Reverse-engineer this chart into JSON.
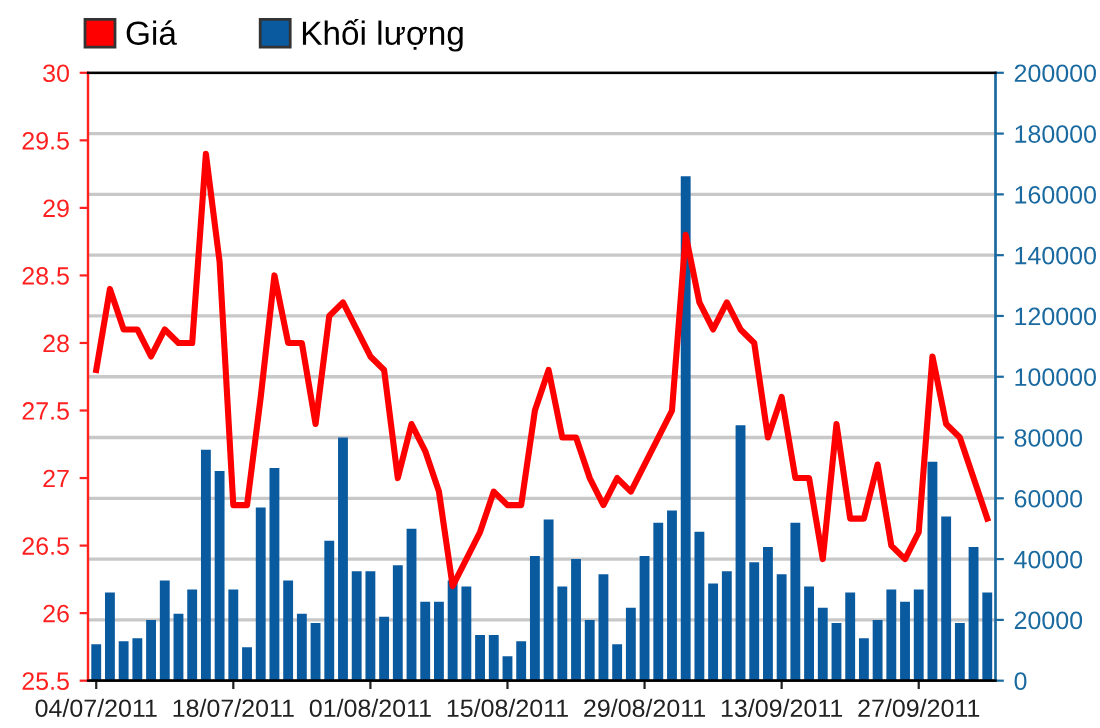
{
  "chart_data": {
    "type": "line",
    "categories": [
      "04/07/2011",
      null,
      null,
      null,
      null,
      null,
      null,
      null,
      null,
      null,
      "18/07/2011",
      null,
      null,
      null,
      null,
      null,
      null,
      null,
      null,
      null,
      "01/08/2011",
      null,
      null,
      null,
      null,
      null,
      null,
      null,
      null,
      null,
      "15/08/2011",
      null,
      null,
      null,
      null,
      null,
      null,
      null,
      null,
      null,
      "29/08/2011",
      null,
      null,
      null,
      null,
      null,
      null,
      null,
      null,
      null,
      "13/09/2011",
      null,
      null,
      null,
      null,
      null,
      null,
      null,
      null,
      null,
      "27/09/2011",
      null,
      null,
      null,
      null,
      null
    ],
    "series": [
      {
        "name": "Giá",
        "axis": "y",
        "color": "#ff0000",
        "values": [
          27.8,
          28.4,
          28.1,
          28.1,
          27.9,
          28.1,
          28.0,
          28.0,
          29.4,
          28.6,
          26.8,
          26.8,
          27.6,
          28.5,
          28.0,
          28.0,
          27.4,
          28.2,
          28.3,
          28.1,
          27.9,
          27.8,
          27.0,
          27.4,
          27.2,
          26.9,
          26.2,
          26.4,
          26.6,
          26.9,
          26.8,
          26.8,
          27.5,
          27.8,
          27.3,
          27.3,
          27.0,
          26.8,
          27.0,
          26.9,
          27.1,
          27.3,
          27.5,
          28.8,
          28.3,
          28.1,
          28.3,
          28.1,
          28.0,
          27.3,
          27.6,
          27.0,
          27.0,
          26.4,
          27.4,
          26.7,
          26.7,
          27.1,
          26.5,
          26.4,
          26.6,
          27.9,
          27.4,
          27.3,
          27.0,
          26.7
        ]
      },
      {
        "name": "Khối lượng",
        "type": "bar",
        "axis": "y2",
        "color": "#0a5aa0",
        "values": [
          12000,
          29000,
          13000,
          14000,
          20000,
          33000,
          22000,
          30000,
          76000,
          69000,
          30000,
          11000,
          57000,
          70000,
          33000,
          22000,
          19000,
          46000,
          80000,
          36000,
          36000,
          21000,
          38000,
          50000,
          26000,
          26000,
          33000,
          31000,
          15000,
          15000,
          8000,
          13000,
          41000,
          53000,
          31000,
          40000,
          20000,
          35000,
          12000,
          24000,
          41000,
          52000,
          56000,
          166000,
          49000,
          32000,
          36000,
          84000,
          39000,
          44000,
          35000,
          52000,
          31000,
          24000,
          19000,
          29000,
          14000,
          20000,
          30000,
          26000,
          30000,
          72000,
          54000,
          19000,
          44000,
          29000
        ]
      }
    ],
    "ylim": [
      25.5,
      30
    ],
    "yticks": [
      25.5,
      26,
      26.5,
      27,
      27.5,
      28,
      28.5,
      29,
      29.5,
      30
    ],
    "y2lim": [
      0,
      200000
    ],
    "y2ticks": [
      0,
      20000,
      40000,
      60000,
      80000,
      100000,
      120000,
      140000,
      160000,
      180000,
      200000
    ],
    "grid": "y",
    "legend": "top left",
    "marker": "none",
    "line_style": "solid"
  }
}
